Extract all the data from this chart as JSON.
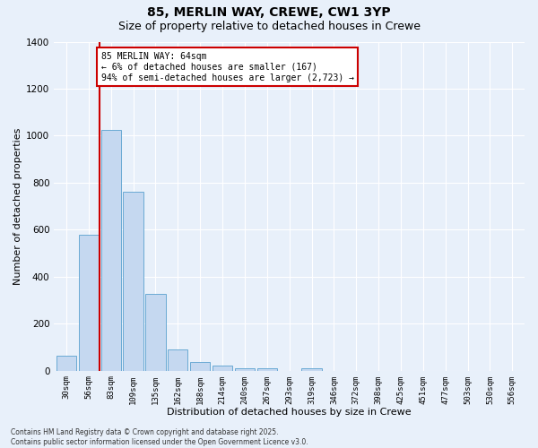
{
  "title_line1": "85, MERLIN WAY, CREWE, CW1 3YP",
  "title_line2": "Size of property relative to detached houses in Crewe",
  "xlabel": "Distribution of detached houses by size in Crewe",
  "ylabel": "Number of detached properties",
  "bar_labels": [
    "30sqm",
    "56sqm",
    "83sqm",
    "109sqm",
    "135sqm",
    "162sqm",
    "188sqm",
    "214sqm",
    "240sqm",
    "267sqm",
    "293sqm",
    "319sqm",
    "346sqm",
    "372sqm",
    "398sqm",
    "425sqm",
    "451sqm",
    "477sqm",
    "503sqm",
    "530sqm",
    "556sqm"
  ],
  "bar_values": [
    65,
    580,
    1025,
    760,
    325,
    90,
    38,
    22,
    12,
    10,
    0,
    10,
    0,
    0,
    0,
    0,
    0,
    0,
    0,
    0,
    0
  ],
  "bar_color": "#c5d8f0",
  "bar_edgecolor": "#6aaad4",
  "ylim": [
    0,
    1400
  ],
  "yticks": [
    0,
    200,
    400,
    600,
    800,
    1000,
    1200,
    1400
  ],
  "vline_x": 1.5,
  "vline_color": "#cc0000",
  "annotation_text": "85 MERLIN WAY: 64sqm\n← 6% of detached houses are smaller (167)\n94% of semi-detached houses are larger (2,723) →",
  "background_color": "#e8f0fa",
  "grid_color": "#ffffff",
  "footer_text": "Contains HM Land Registry data © Crown copyright and database right 2025.\nContains public sector information licensed under the Open Government Licence v3.0.",
  "title_fontsize": 10,
  "subtitle_fontsize": 9,
  "label_fontsize": 8,
  "tick_fontsize": 6.5,
  "annotation_fontsize": 7,
  "ylabel_fontsize": 8
}
